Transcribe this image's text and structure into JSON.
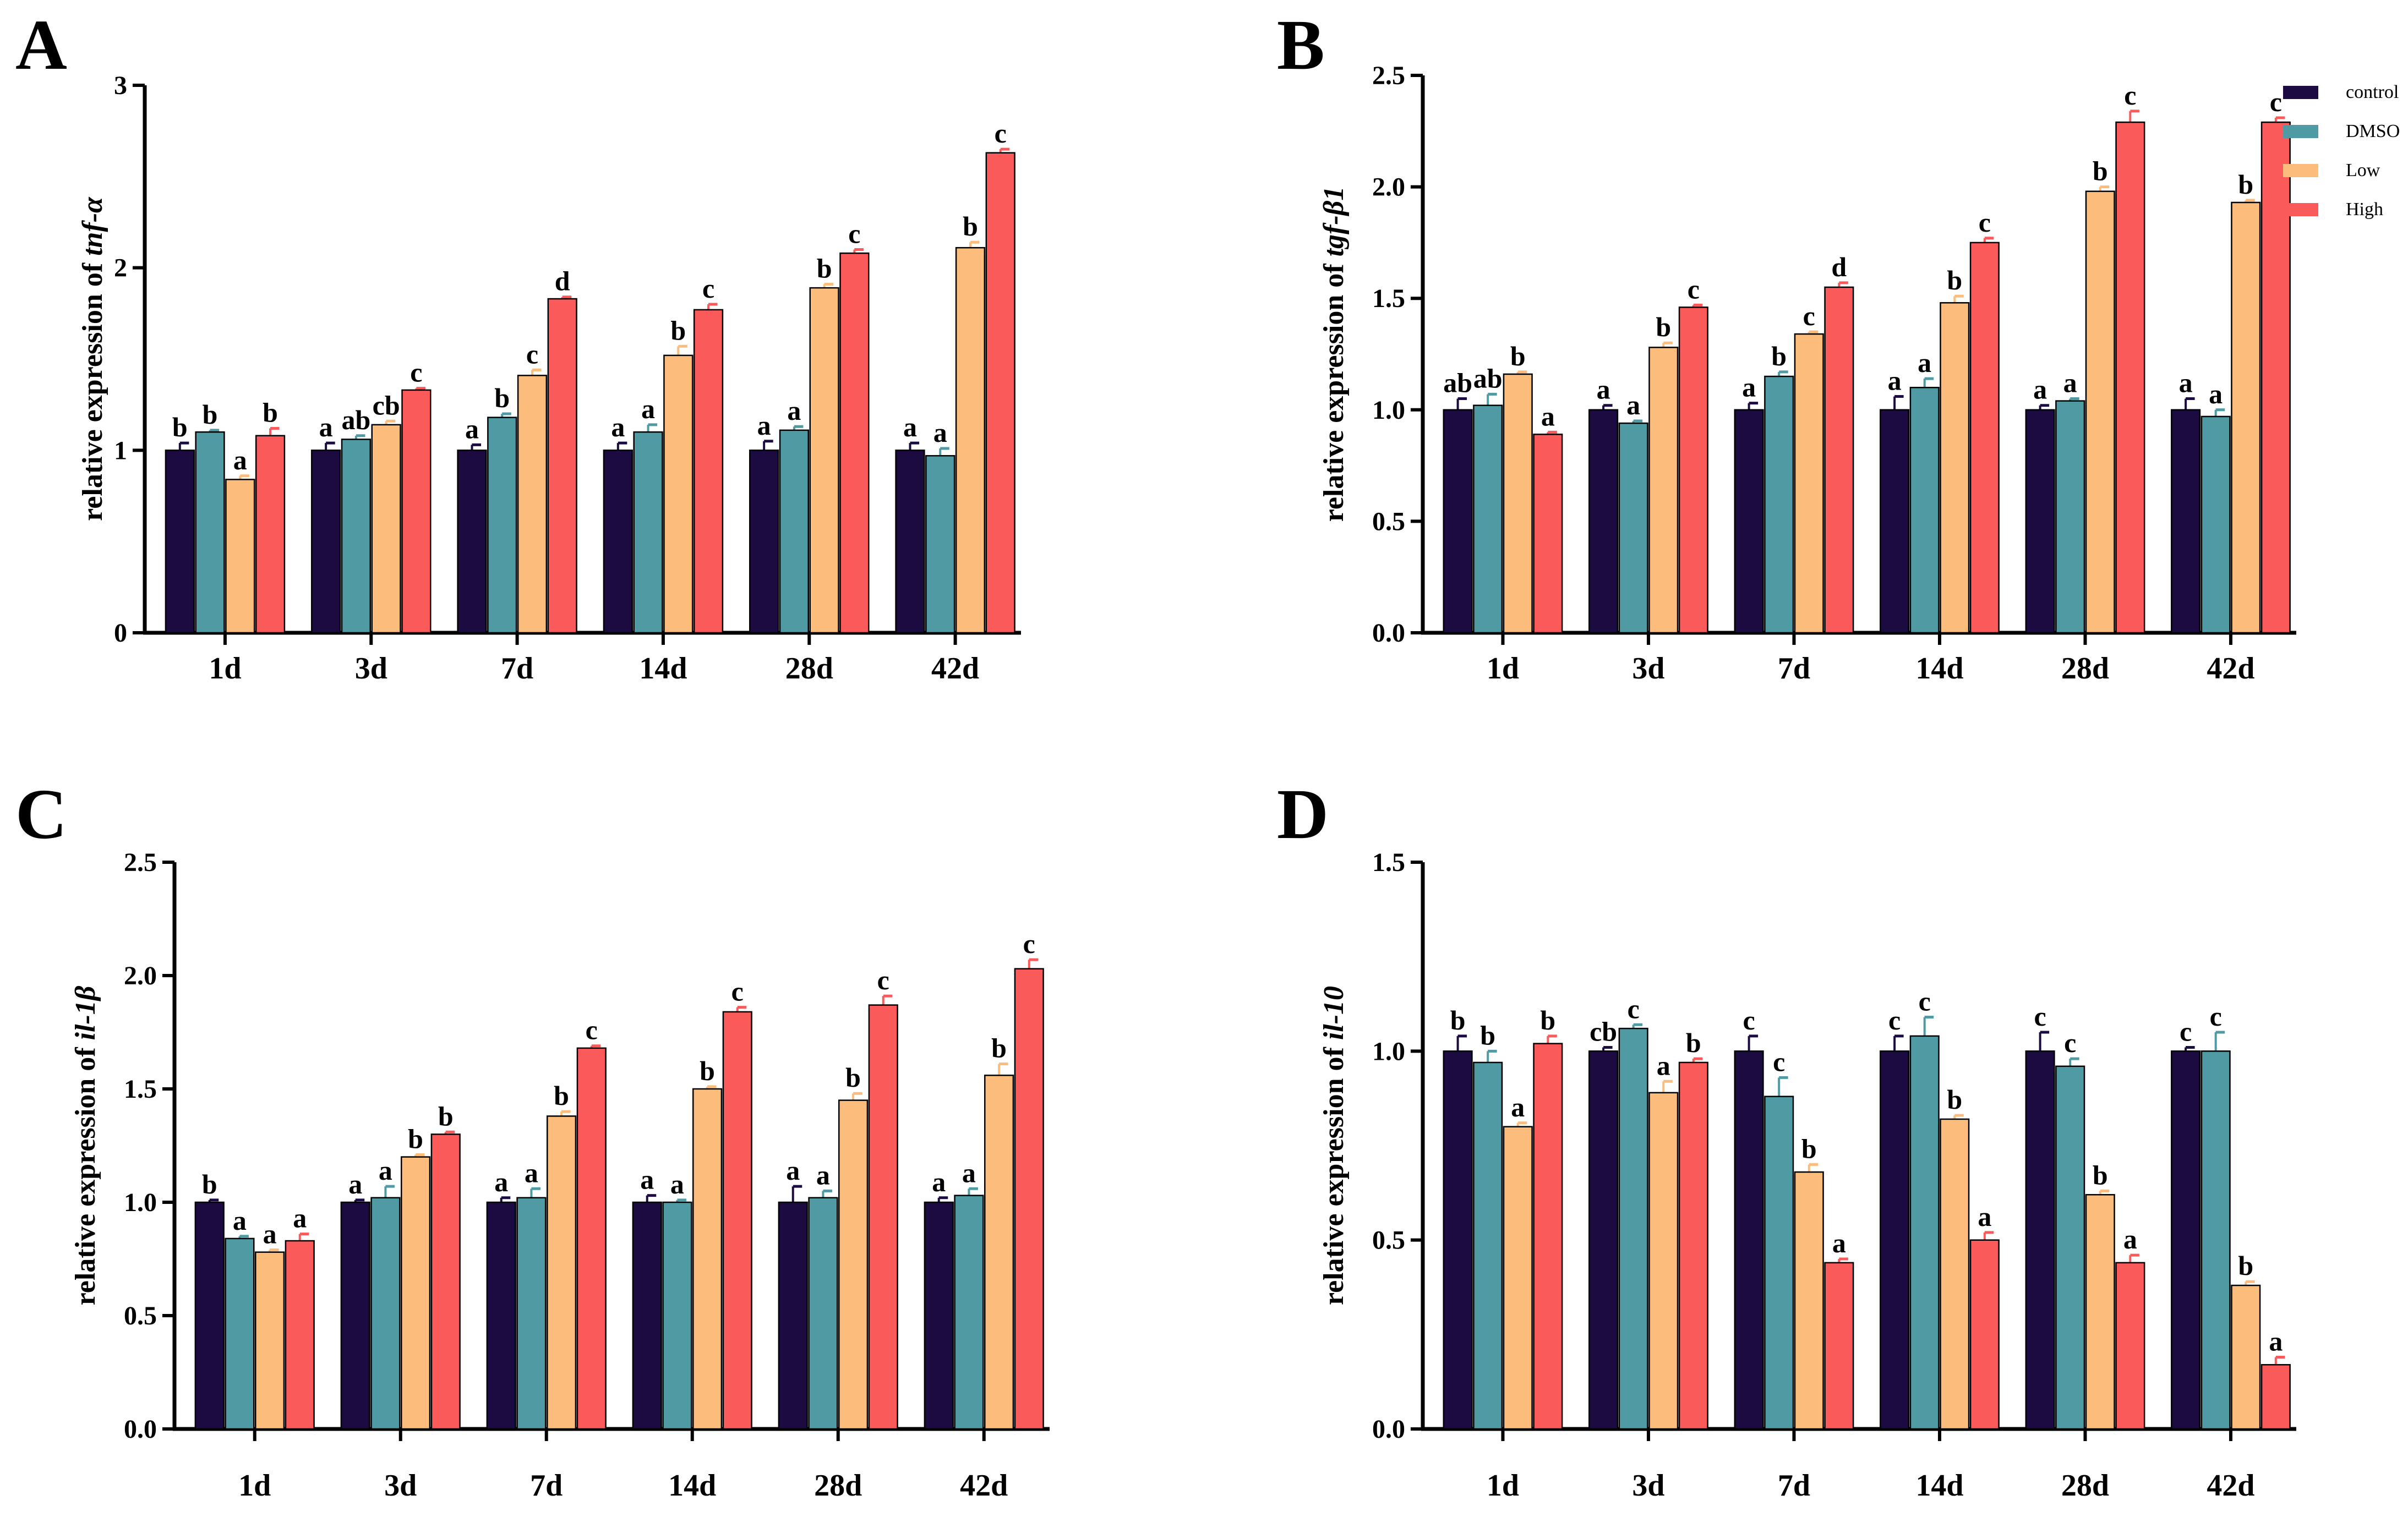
{
  "legend": {
    "entries": [
      {
        "name": "control",
        "color": "#1c0b40"
      },
      {
        "name": "DMSO",
        "color": "#4f9aa3"
      },
      {
        "name": "Low",
        "color": "#fcbc7c"
      },
      {
        "name": "High",
        "color": "#fa5a5a"
      }
    ]
  },
  "chart_data": [
    {
      "panel": "A",
      "type": "bar",
      "ylabel_prefix": "relative expression of ",
      "ylabel_gene": "tnf-α",
      "categories": [
        "1d",
        "3d",
        "7d",
        "14d",
        "28d",
        "42d"
      ],
      "ylim": [
        0,
        3
      ],
      "yticks": [
        0,
        1,
        2,
        3
      ],
      "ytick_labels": [
        "0",
        "1",
        "2",
        "3"
      ],
      "series": [
        {
          "name": "control",
          "values": [
            1.0,
            1.0,
            1.0,
            1.0,
            1.0,
            1.0
          ],
          "errors": [
            0.04,
            0.04,
            0.03,
            0.04,
            0.05,
            0.04
          ],
          "letters": [
            "b",
            "a",
            "a",
            "a",
            "a",
            "a"
          ]
        },
        {
          "name": "DMSO",
          "values": [
            1.1,
            1.06,
            1.18,
            1.1,
            1.11,
            0.97
          ],
          "errors": [
            0.01,
            0.02,
            0.02,
            0.04,
            0.02,
            0.04
          ],
          "letters": [
            "b",
            "ab",
            "b",
            "a",
            "a",
            "a"
          ]
        },
        {
          "name": "Low",
          "values": [
            0.84,
            1.14,
            1.41,
            1.52,
            1.89,
            2.11
          ],
          "errors": [
            0.02,
            0.02,
            0.03,
            0.05,
            0.02,
            0.03
          ],
          "letters": [
            "a",
            "cb",
            "c",
            "b",
            "b",
            "b"
          ]
        },
        {
          "name": "High",
          "values": [
            1.08,
            1.33,
            1.83,
            1.77,
            2.08,
            2.63
          ],
          "errors": [
            0.04,
            0.01,
            0.01,
            0.03,
            0.02,
            0.02
          ],
          "letters": [
            "b",
            "c",
            "d",
            "c",
            "c",
            "c"
          ]
        }
      ]
    },
    {
      "panel": "B",
      "type": "bar",
      "ylabel_prefix": "relative expression of ",
      "ylabel_gene": "tgf-β1",
      "categories": [
        "1d",
        "3d",
        "7d",
        "14d",
        "28d",
        "42d"
      ],
      "ylim": [
        0,
        2.5
      ],
      "yticks": [
        0,
        0.5,
        1.0,
        1.5,
        2.0,
        2.5
      ],
      "ytick_labels": [
        "0.0",
        "0.5",
        "1.0",
        "1.5",
        "2.0",
        "2.5"
      ],
      "series": [
        {
          "name": "control",
          "values": [
            1.0,
            1.0,
            1.0,
            1.0,
            1.0,
            1.0
          ],
          "errors": [
            0.05,
            0.02,
            0.03,
            0.06,
            0.02,
            0.05
          ],
          "letters": [
            "ab",
            "a",
            "a",
            "a",
            "a",
            "a"
          ]
        },
        {
          "name": "DMSO",
          "values": [
            1.02,
            0.94,
            1.15,
            1.1,
            1.04,
            0.97
          ],
          "errors": [
            0.05,
            0.01,
            0.02,
            0.04,
            0.01,
            0.03
          ],
          "letters": [
            "ab",
            "a",
            "b",
            "a",
            "a",
            "a"
          ]
        },
        {
          "name": "Low",
          "values": [
            1.16,
            1.28,
            1.34,
            1.48,
            1.98,
            1.93
          ],
          "errors": [
            0.01,
            0.02,
            0.01,
            0.03,
            0.02,
            0.01
          ],
          "letters": [
            "b",
            "b",
            "c",
            "b",
            "b",
            "b"
          ]
        },
        {
          "name": "High",
          "values": [
            0.89,
            1.46,
            1.55,
            1.75,
            2.29,
            2.29
          ],
          "errors": [
            0.01,
            0.01,
            0.02,
            0.02,
            0.05,
            0.02
          ],
          "letters": [
            "a",
            "c",
            "d",
            "c",
            "c",
            "c"
          ]
        }
      ]
    },
    {
      "panel": "C",
      "type": "bar",
      "ylabel_prefix": "relative expression of ",
      "ylabel_gene": "il-1β",
      "categories": [
        "1d",
        "3d",
        "7d",
        "14d",
        "28d",
        "42d"
      ],
      "ylim": [
        0,
        2.5
      ],
      "yticks": [
        0,
        0.5,
        1.0,
        1.5,
        2.0,
        2.5
      ],
      "ytick_labels": [
        "0.0",
        "0.5",
        "1.0",
        "1.5",
        "2.0",
        "2.5"
      ],
      "series": [
        {
          "name": "control",
          "values": [
            1.0,
            1.0,
            1.0,
            1.0,
            1.0,
            1.0
          ],
          "errors": [
            0.01,
            0.01,
            0.02,
            0.03,
            0.07,
            0.02
          ],
          "letters": [
            "b",
            "a",
            "a",
            "a",
            "a",
            "a"
          ]
        },
        {
          "name": "DMSO",
          "values": [
            0.84,
            1.02,
            1.02,
            1.0,
            1.02,
            1.03
          ],
          "errors": [
            0.01,
            0.05,
            0.04,
            0.01,
            0.03,
            0.03
          ],
          "letters": [
            "a",
            "a",
            "a",
            "a",
            "a",
            "a"
          ]
        },
        {
          "name": "Low",
          "values": [
            0.78,
            1.2,
            1.38,
            1.5,
            1.45,
            1.56
          ],
          "errors": [
            0.01,
            0.01,
            0.02,
            0.01,
            0.03,
            0.05
          ],
          "letters": [
            "a",
            "b",
            "b",
            "b",
            "b",
            "b"
          ]
        },
        {
          "name": "High",
          "values": [
            0.83,
            1.3,
            1.68,
            1.84,
            1.87,
            2.03
          ],
          "errors": [
            0.03,
            0.01,
            0.01,
            0.02,
            0.04,
            0.04
          ],
          "letters": [
            "a",
            "b",
            "c",
            "c",
            "c",
            "c"
          ]
        }
      ]
    },
    {
      "panel": "D",
      "type": "bar",
      "ylabel_prefix": "relative expression of ",
      "ylabel_gene": "il-10",
      "categories": [
        "1d",
        "3d",
        "7d",
        "14d",
        "28d",
        "42d"
      ],
      "ylim": [
        0,
        1.5
      ],
      "yticks": [
        0,
        0.5,
        1.0,
        1.5
      ],
      "ytick_labels": [
        "0.0",
        "0.5",
        "1.0",
        "1.5"
      ],
      "series": [
        {
          "name": "control",
          "values": [
            1.0,
            1.0,
            1.0,
            1.0,
            1.0,
            1.0
          ],
          "errors": [
            0.04,
            0.01,
            0.04,
            0.04,
            0.05,
            0.01
          ],
          "letters": [
            "b",
            "cb",
            "c",
            "c",
            "c",
            "c"
          ]
        },
        {
          "name": "DMSO",
          "values": [
            0.97,
            1.06,
            0.88,
            1.04,
            0.96,
            1.0
          ],
          "errors": [
            0.03,
            0.01,
            0.05,
            0.05,
            0.02,
            0.05
          ],
          "letters": [
            "b",
            "c",
            "c",
            "c",
            "c",
            "c"
          ]
        },
        {
          "name": "Low",
          "values": [
            0.8,
            0.89,
            0.68,
            0.82,
            0.62,
            0.38
          ],
          "errors": [
            0.01,
            0.03,
            0.02,
            0.01,
            0.01,
            0.01
          ],
          "letters": [
            "a",
            "a",
            "b",
            "b",
            "b",
            "b"
          ]
        },
        {
          "name": "High",
          "values": [
            1.02,
            0.97,
            0.44,
            0.5,
            0.44,
            0.17
          ],
          "errors": [
            0.02,
            0.01,
            0.01,
            0.02,
            0.02,
            0.02
          ],
          "letters": [
            "b",
            "b",
            "a",
            "a",
            "a",
            "a"
          ]
        }
      ]
    }
  ]
}
